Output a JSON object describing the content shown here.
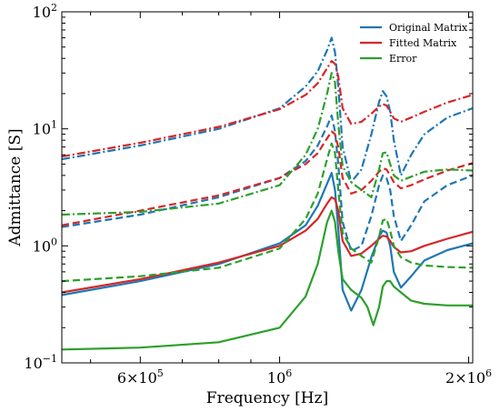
{
  "chart_data": {
    "type": "line",
    "title": "",
    "xlabel": "Frequency [Hz]",
    "ylabel": "Admittance [S]",
    "xscale": "log",
    "yscale": "log",
    "xlim": [
      450000,
      2030000
    ],
    "ylim": [
      0.1,
      100
    ],
    "grid": false,
    "legend_position": "top-right",
    "x_ticks": [
      {
        "value": 600000,
        "label": "6×10",
        "sup": "5"
      },
      {
        "value": 1000000,
        "label": "10",
        "sup": "6"
      },
      {
        "value": 2000000,
        "label": "2×10",
        "sup": "6"
      }
    ],
    "y_ticks": [
      {
        "value": 0.1,
        "label": "10",
        "sup": "−1"
      },
      {
        "value": 1,
        "label": "10",
        "sup": "0"
      },
      {
        "value": 10,
        "label": "10",
        "sup": "1"
      },
      {
        "value": 100,
        "label": "10",
        "sup": "2"
      }
    ],
    "legend": [
      {
        "label": "Original Matrix",
        "color": "#1f77b4"
      },
      {
        "label": "Fitted Matrix",
        "color": "#d62728"
      },
      {
        "label": "Error",
        "color": "#2ca02c"
      }
    ],
    "series": [
      {
        "group": "Original Matrix",
        "color": "#1f77b4",
        "style": "solid",
        "x": [
          450000,
          600000,
          800000,
          1000000,
          1100000,
          1150000,
          1190000,
          1210000,
          1225000,
          1240000,
          1260000,
          1300000,
          1350000,
          1400000,
          1440000,
          1460000,
          1480000,
          1500000,
          1520000,
          1560000,
          1620000,
          1700000,
          1850000,
          2030000
        ],
        "y": [
          0.38,
          0.5,
          0.7,
          1.05,
          1.5,
          2.2,
          3.4,
          4.2,
          3.0,
          1.4,
          0.42,
          0.28,
          0.42,
          0.8,
          1.2,
          1.35,
          1.3,
          1.0,
          0.6,
          0.44,
          0.55,
          0.75,
          0.92,
          1.05
        ]
      },
      {
        "group": "Original Matrix",
        "color": "#1f77b4",
        "style": "dashed",
        "x": [
          450000,
          600000,
          800000,
          1000000,
          1100000,
          1150000,
          1190000,
          1210000,
          1225000,
          1240000,
          1260000,
          1300000,
          1350000,
          1400000,
          1440000,
          1460000,
          1480000,
          1500000,
          1520000,
          1560000,
          1620000,
          1700000,
          1850000,
          2030000
        ],
        "y": [
          1.45,
          1.85,
          2.6,
          3.8,
          5.3,
          7.2,
          10.5,
          13.0,
          9.5,
          5.0,
          1.6,
          0.9,
          1.0,
          1.8,
          3.3,
          4.0,
          3.8,
          3.0,
          1.8,
          1.1,
          1.5,
          2.4,
          3.3,
          4.0
        ]
      },
      {
        "group": "Original Matrix",
        "color": "#1f77b4",
        "style": "dashdot",
        "x": [
          450000,
          600000,
          800000,
          1000000,
          1100000,
          1150000,
          1190000,
          1210000,
          1225000,
          1240000,
          1260000,
          1300000,
          1350000,
          1400000,
          1440000,
          1460000,
          1480000,
          1500000,
          1520000,
          1560000,
          1620000,
          1700000,
          1850000,
          2030000
        ],
        "y": [
          5.5,
          7.2,
          10.0,
          15.0,
          23.0,
          31.0,
          47.0,
          60.0,
          45.0,
          23.0,
          7.0,
          3.5,
          4.5,
          9.0,
          17.0,
          21.0,
          19.0,
          14.0,
          8.0,
          4.0,
          6.0,
          9.0,
          12.5,
          15.0
        ]
      },
      {
        "group": "Fitted Matrix",
        "color": "#d62728",
        "style": "solid",
        "x": [
          450000,
          600000,
          800000,
          1000000,
          1100000,
          1150000,
          1190000,
          1210000,
          1225000,
          1240000,
          1260000,
          1300000,
          1350000,
          1400000,
          1440000,
          1460000,
          1480000,
          1500000,
          1520000,
          1560000,
          1620000,
          1700000,
          1850000,
          2030000
        ],
        "y": [
          0.4,
          0.52,
          0.72,
          1.0,
          1.35,
          1.7,
          2.3,
          2.6,
          2.5,
          2.0,
          1.1,
          0.82,
          0.86,
          1.0,
          1.15,
          1.22,
          1.2,
          1.1,
          0.98,
          0.88,
          0.9,
          1.0,
          1.15,
          1.32
        ]
      },
      {
        "group": "Fitted Matrix",
        "color": "#d62728",
        "style": "dashed",
        "x": [
          450000,
          600000,
          800000,
          1000000,
          1100000,
          1150000,
          1190000,
          1210000,
          1225000,
          1240000,
          1260000,
          1300000,
          1350000,
          1400000,
          1440000,
          1460000,
          1480000,
          1500000,
          1520000,
          1560000,
          1620000,
          1700000,
          1850000,
          2030000
        ],
        "y": [
          1.5,
          2.0,
          2.7,
          3.8,
          5.0,
          6.2,
          8.3,
          9.5,
          9.0,
          7.0,
          3.8,
          2.8,
          3.0,
          3.6,
          4.3,
          4.6,
          4.5,
          4.0,
          3.5,
          3.1,
          3.3,
          3.7,
          4.4,
          5.1
        ]
      },
      {
        "group": "Fitted Matrix",
        "color": "#d62728",
        "style": "dashdot",
        "x": [
          450000,
          600000,
          800000,
          1000000,
          1100000,
          1150000,
          1190000,
          1210000,
          1225000,
          1240000,
          1260000,
          1300000,
          1350000,
          1400000,
          1440000,
          1460000,
          1480000,
          1500000,
          1520000,
          1560000,
          1620000,
          1700000,
          1850000,
          2030000
        ],
        "y": [
          5.8,
          7.6,
          10.4,
          14.7,
          19.5,
          24.5,
          33.0,
          38.0,
          36.0,
          28.0,
          15.0,
          11.0,
          11.5,
          13.5,
          15.5,
          16.3,
          15.8,
          14.0,
          12.3,
          11.5,
          12.5,
          14.0,
          16.8,
          19.5
        ]
      },
      {
        "group": "Error",
        "color": "#2ca02c",
        "style": "solid",
        "x": [
          450000,
          600000,
          800000,
          1000000,
          1100000,
          1150000,
          1190000,
          1210000,
          1225000,
          1240000,
          1260000,
          1300000,
          1350000,
          1380000,
          1410000,
          1440000,
          1460000,
          1480000,
          1500000,
          1520000,
          1560000,
          1620000,
          1700000,
          1850000,
          2030000
        ],
        "y": [
          0.13,
          0.135,
          0.15,
          0.2,
          0.37,
          0.7,
          1.6,
          2.0,
          1.6,
          0.9,
          0.52,
          0.42,
          0.36,
          0.3,
          0.21,
          0.3,
          0.45,
          0.5,
          0.5,
          0.45,
          0.4,
          0.34,
          0.32,
          0.31,
          0.31
        ]
      },
      {
        "group": "Error",
        "color": "#2ca02c",
        "style": "dashed",
        "x": [
          450000,
          600000,
          800000,
          1000000,
          1100000,
          1150000,
          1190000,
          1210000,
          1225000,
          1240000,
          1260000,
          1300000,
          1350000,
          1400000,
          1440000,
          1460000,
          1480000,
          1500000,
          1520000,
          1560000,
          1620000,
          1700000,
          1850000,
          2030000
        ],
        "y": [
          0.5,
          0.55,
          0.65,
          0.95,
          1.7,
          2.8,
          5.5,
          7.5,
          6.2,
          3.0,
          1.3,
          0.95,
          0.82,
          0.72,
          1.2,
          1.65,
          1.7,
          1.35,
          1.0,
          0.8,
          0.72,
          0.68,
          0.66,
          0.65
        ]
      },
      {
        "group": "Error",
        "color": "#2ca02c",
        "style": "dashdot",
        "x": [
          450000,
          600000,
          800000,
          1000000,
          1100000,
          1150000,
          1190000,
          1210000,
          1225000,
          1240000,
          1260000,
          1300000,
          1350000,
          1400000,
          1440000,
          1460000,
          1480000,
          1500000,
          1520000,
          1560000,
          1620000,
          1700000,
          1850000,
          2030000
        ],
        "y": [
          1.85,
          1.95,
          2.3,
          3.3,
          6.0,
          10.0,
          20.0,
          30.0,
          25.0,
          11.0,
          4.8,
          3.5,
          3.0,
          2.6,
          4.5,
          6.2,
          6.3,
          5.0,
          4.0,
          3.6,
          3.9,
          4.3,
          4.5,
          4.4
        ]
      }
    ]
  }
}
